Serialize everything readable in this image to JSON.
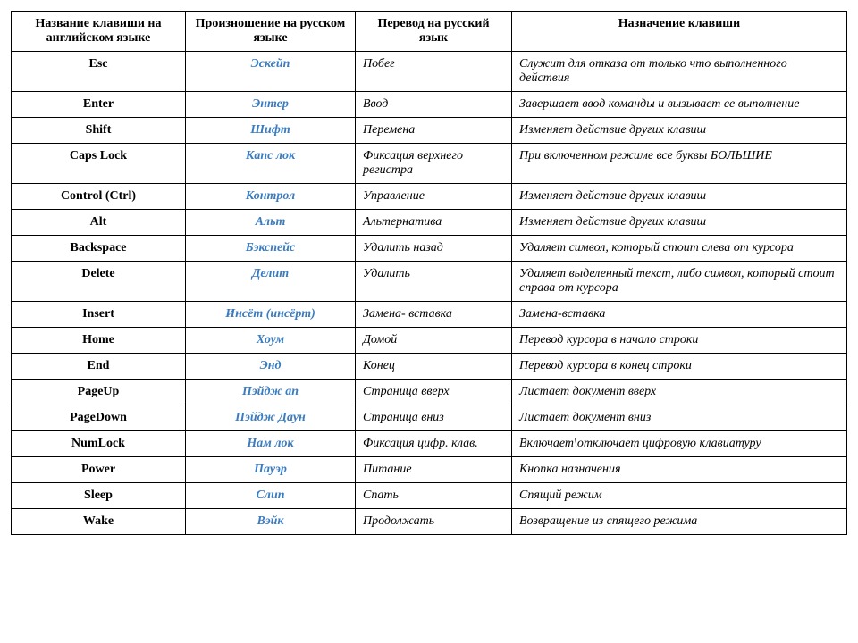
{
  "columns": [
    "Название клавиши на английском языке",
    "Произношение на русском языке",
    "Перевод на русский язык",
    "Назначение клавиши"
  ],
  "colors": {
    "pron_text": "#3a7cbf",
    "border": "#000000",
    "text": "#000000",
    "background": "#ffffff"
  },
  "rows": [
    {
      "key": "Esc",
      "pron": "Эскейп",
      "trans": "Побег",
      "desc": "Служит для отказа от только что выполненного действия",
      "desc_wrap": true
    },
    {
      "key": "Enter",
      "pron": "Энтер",
      "trans": "Ввод",
      "desc": "Завершает ввод команды и вызывает ее выполнение",
      "desc_wrap": true
    },
    {
      "key": "Shift",
      "pron": "Шифт",
      "trans": "Перемена",
      "desc": "Изменяет действие других клавиш"
    },
    {
      "key": "Caps Lock",
      "pron": "Капс лок",
      "trans": "Фиксация верхнего регистра",
      "desc": "При включенном режиме все буквы БОЛЬШИЕ",
      "desc_wrap": true,
      "trans_wrap": true
    },
    {
      "key": "Control (Ctrl)",
      "pron": "Контрол",
      "trans": "Управление",
      "desc": "Изменяет действие других клавиш"
    },
    {
      "key": "Alt",
      "pron": "Альт",
      "trans": "Альтернатива",
      "desc": "Изменяет действие других клавиш"
    },
    {
      "key": "Backspace",
      "pron": "Бэкспейс",
      "trans": "Удалить назад",
      "desc": "Удаляет символ, который стоит слева от курсора",
      "desc_wrap": true
    },
    {
      "key": "Delete",
      "pron": "Делит",
      "trans": "Удалить",
      "desc": "Удаляет выделенный текст, либо символ, который стоит справа от курсора",
      "desc_wrap": true
    },
    {
      "key": "Insert",
      "pron": "Инсёт (инсёрт)",
      "trans": "Замена- вставка",
      "desc": "Замена-вставка"
    },
    {
      "key": "Home",
      "pron": "Хоум",
      "trans": "Домой",
      "desc": "Перевод курсора в начало строки"
    },
    {
      "key": "End",
      "pron": "Энд",
      "trans": "Конец",
      "desc": "Перевод курсора в конец строки"
    },
    {
      "key": "PageUp",
      "pron": "Пэйдж ап",
      "trans": "Страница вверх",
      "desc": "Листает документ вверх"
    },
    {
      "key": "PageDown",
      "pron": "Пэйдж Даун",
      "trans": "Страница вниз",
      "desc": "Листает документ вниз"
    },
    {
      "key": "NumLock",
      "pron": "Нам лок",
      "trans": "Фиксация цифр. клав.",
      "desc": "Включает\\отключает цифровую клавиатуру",
      "desc_wrap": true
    },
    {
      "key": "Power",
      "pron": "Пауэр",
      "trans": "Питание",
      "desc": "Кнопка назначения"
    },
    {
      "key": "Sleep",
      "pron": "Слип",
      "trans": "Спать",
      "desc": "Спящий режим"
    },
    {
      "key": "Wake",
      "pron": "Вэйк",
      "trans": "Продолжать",
      "desc": "Возвращение из спящего режима"
    }
  ]
}
